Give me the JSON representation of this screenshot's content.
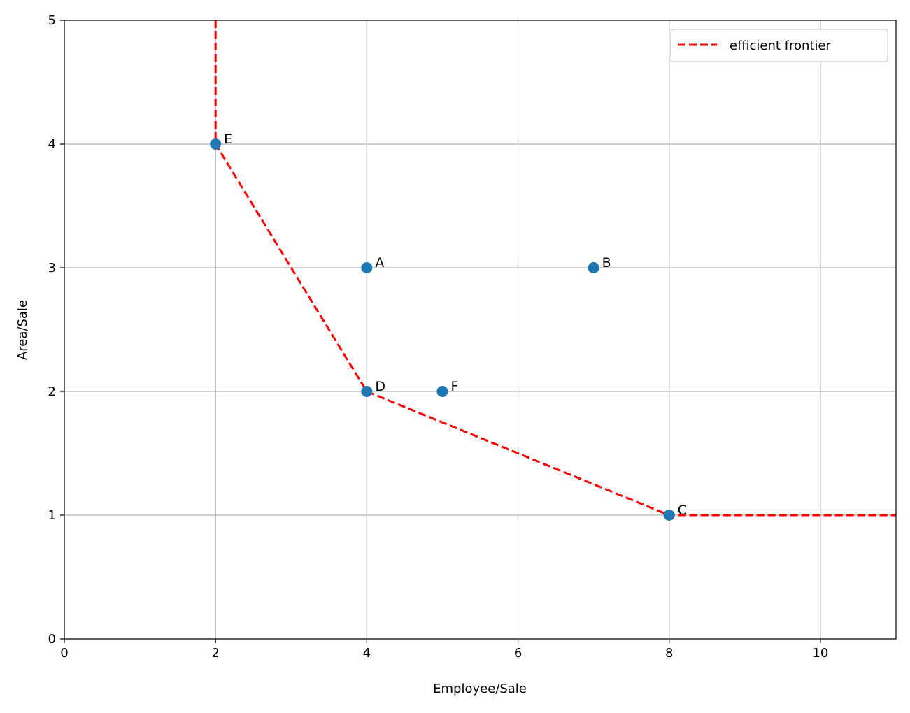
{
  "chart_data": {
    "type": "scatter",
    "title": "",
    "xlabel": "Employee/Sale",
    "ylabel": "Area/Sale",
    "xlim": [
      0,
      11
    ],
    "ylim": [
      0,
      5
    ],
    "xticks": [
      0,
      2,
      4,
      6,
      8,
      10
    ],
    "yticks": [
      0,
      1,
      2,
      3,
      4,
      5
    ],
    "grid": true,
    "points": [
      {
        "label": "A",
        "x": 4,
        "y": 3
      },
      {
        "label": "B",
        "x": 7,
        "y": 3
      },
      {
        "label": "C",
        "x": 8,
        "y": 1
      },
      {
        "label": "D",
        "x": 4,
        "y": 2
      },
      {
        "label": "E",
        "x": 2,
        "y": 4
      },
      {
        "label": "F",
        "x": 5,
        "y": 2
      }
    ],
    "point_color": "#1f77b4",
    "series": [
      {
        "name": "efficient frontier",
        "style": "dashed",
        "color": "#ff0000",
        "x": [
          2,
          2,
          4,
          8,
          11
        ],
        "y": [
          5,
          4,
          2,
          1,
          1
        ]
      }
    ],
    "legend": {
      "placement": "top-right",
      "entries": [
        "efficient frontier"
      ]
    }
  }
}
